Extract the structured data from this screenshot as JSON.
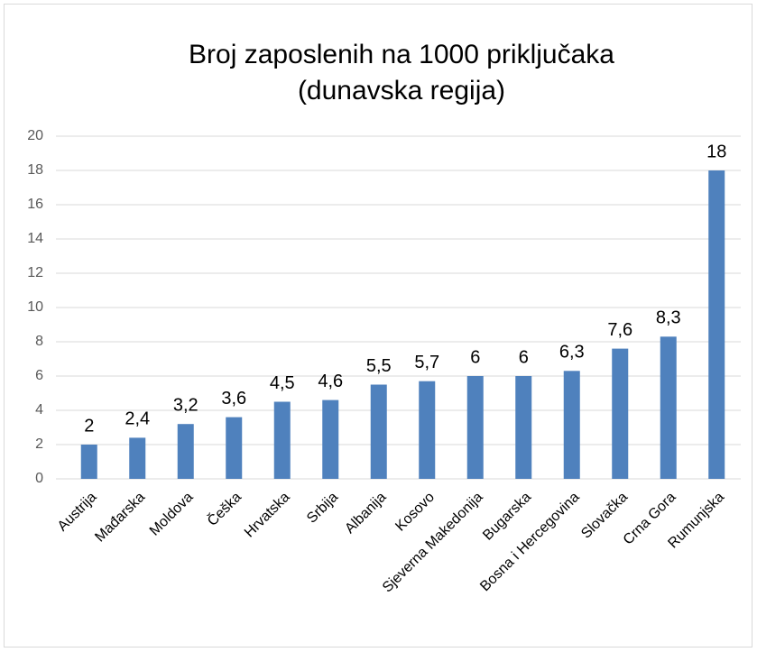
{
  "chart_data": {
    "type": "bar",
    "title": [
      "Broj zaposlenih na 1000 priključaka",
      "(dunavska regija)"
    ],
    "categories": [
      "Austrija",
      "Mađarska",
      "Moldova",
      "Češka",
      "Hrvatska",
      "Srbija",
      "Albanija",
      "Kosovo",
      "Sjeverna Makedonija",
      "Bugarska",
      "Bosna i Hercegovina",
      "Slovačka",
      "Crna Gora",
      "Rumunjska"
    ],
    "values": [
      2,
      2.4,
      3.2,
      3.6,
      4.5,
      4.6,
      5.5,
      5.7,
      6,
      6,
      6.3,
      7.6,
      8.3,
      18
    ],
    "value_labels": [
      "2",
      "2,4",
      "3,2",
      "3,6",
      "4,5",
      "4,6",
      "5,5",
      "5,7",
      "6",
      "6",
      "6,3",
      "7,6",
      "8,3",
      "18"
    ],
    "color": "#4f81bd",
    "ylim": [
      0,
      20
    ],
    "yticks": [
      0,
      2,
      4,
      6,
      8,
      10,
      12,
      14,
      16,
      18,
      20
    ],
    "grid": true
  }
}
